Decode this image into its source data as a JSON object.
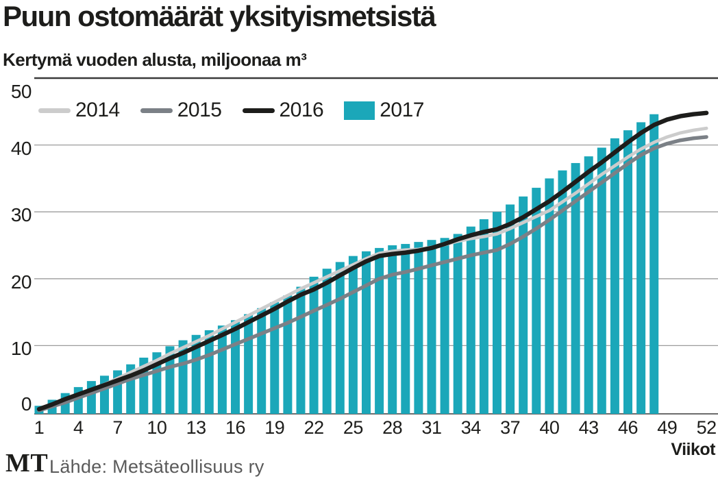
{
  "title": "Puun ostomäärät yksityismetsistä",
  "subtitle": "Kertymä vuoden alusta, miljoonaa m³",
  "footer": {
    "logo": "MT",
    "source": "Lähde: Metsäteollisuus ry"
  },
  "colors": {
    "bar_2017": "#1ba7b9",
    "line_2014": "#cccccc",
    "line_2015": "#7b8086",
    "line_2016": "#1d1d1b",
    "gridline": "#9b9b9b",
    "axis_line": "#3a3a3a",
    "text": "#1d1d1b",
    "source_text": "#5a5a5a"
  },
  "chart_data": {
    "type": "bar+line",
    "title": "Puun ostomäärät yksityismetsistä",
    "subtitle": "Kertymä vuoden alusta, miljoonaa m³",
    "xlabel": "Viikot",
    "ylabel": "miljoonaa m³",
    "x_ticks": [
      1,
      4,
      7,
      10,
      13,
      16,
      19,
      22,
      25,
      28,
      31,
      34,
      37,
      40,
      43,
      46,
      49,
      52
    ],
    "y_ticks": [
      0,
      10,
      20,
      30,
      40,
      50
    ],
    "ylim": [
      0,
      50
    ],
    "xlim_weeks": [
      1,
      52
    ],
    "grid": "horizontal",
    "legend_position": "top-left",
    "bar_series": {
      "name": "2017",
      "color": "#1ba7b9",
      "first_week": 1,
      "values": [
        1.0,
        1.9,
        2.9,
        3.8,
        4.7,
        5.5,
        6.3,
        7.2,
        8.2,
        9.0,
        9.9,
        10.8,
        11.6,
        12.3,
        13.0,
        13.8,
        14.7,
        15.6,
        16.5,
        17.5,
        18.8,
        20.3,
        21.5,
        22.5,
        23.4,
        24.1,
        24.6,
        25.0,
        25.2,
        25.5,
        25.8,
        26.1,
        26.7,
        27.8,
        28.9,
        30.0,
        31.1,
        32.3,
        33.6,
        35.0,
        36.2,
        37.3,
        38.3,
        39.6,
        41.0,
        42.2,
        43.4,
        44.6
      ]
    },
    "line_series": [
      {
        "name": "2014",
        "color": "#cccccc",
        "values": [
          0.4,
          1.1,
          1.8,
          2.6,
          3.4,
          4.2,
          5.1,
          6.0,
          6.9,
          7.8,
          8.8,
          9.7,
          10.6,
          11.5,
          12.5,
          13.5,
          14.5,
          15.5,
          16.5,
          17.5,
          18.5,
          19.4,
          20.3,
          21.2,
          22.1,
          23.0,
          23.8,
          24.1,
          24.3,
          24.4,
          24.7,
          25.1,
          25.6,
          26.0,
          26.3,
          26.7,
          27.5,
          28.4,
          29.3,
          30.2,
          31.5,
          32.8,
          34.2,
          35.6,
          36.9,
          38.2,
          39.4,
          40.4,
          41.2,
          41.8,
          42.2,
          42.5
        ]
      },
      {
        "name": "2015",
        "color": "#7b8086",
        "values": [
          0.3,
          0.9,
          1.5,
          2.2,
          2.9,
          3.6,
          4.3,
          5.0,
          5.6,
          6.2,
          6.8,
          7.3,
          7.9,
          8.6,
          9.4,
          10.2,
          11.0,
          11.8,
          12.6,
          13.4,
          14.3,
          15.2,
          16.1,
          17.0,
          18.0,
          19.0,
          20.0,
          20.6,
          21.0,
          21.5,
          22.0,
          22.5,
          23.0,
          23.5,
          23.9,
          24.3,
          25.2,
          26.3,
          27.5,
          28.8,
          30.2,
          31.6,
          33.0,
          34.4,
          35.8,
          37.2,
          38.5,
          39.5,
          40.2,
          40.7,
          41.0,
          41.2
        ]
      },
      {
        "name": "2016",
        "color": "#1d1d1b",
        "values": [
          0.5,
          1.2,
          2.0,
          2.7,
          3.4,
          4.1,
          4.8,
          5.5,
          6.3,
          7.2,
          8.1,
          8.9,
          9.8,
          10.7,
          11.6,
          12.5,
          13.5,
          14.5,
          15.5,
          16.6,
          17.6,
          18.4,
          19.4,
          20.5,
          21.6,
          22.6,
          23.4,
          23.7,
          23.9,
          24.2,
          24.6,
          25.2,
          25.9,
          26.5,
          27.0,
          27.4,
          28.2,
          29.2,
          30.4,
          31.6,
          33.0,
          34.5,
          36.0,
          37.4,
          38.9,
          40.4,
          41.8,
          43.0,
          43.8,
          44.3,
          44.6,
          44.8
        ]
      }
    ],
    "legend_order": [
      "2014",
      "2015",
      "2016",
      "2017"
    ]
  }
}
